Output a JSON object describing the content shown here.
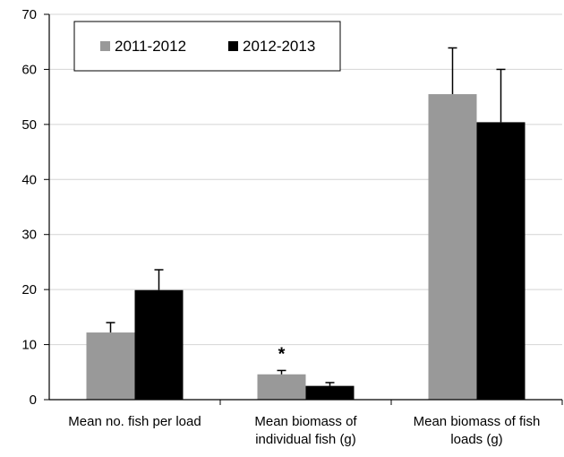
{
  "chart_data": {
    "type": "bar",
    "title": "",
    "xlabel": "",
    "ylabel": "",
    "ylim": [
      0,
      70
    ],
    "yticks": [
      "0",
      "10",
      "20",
      "30",
      "40",
      "50",
      "60",
      "70"
    ],
    "grid": true,
    "legend_position": "top-left",
    "categories": [
      [
        "Mean no. fish per load"
      ],
      [
        "Mean biomass of",
        "individual fish (g)"
      ],
      [
        "Mean biomass of fish",
        "loads (g)"
      ]
    ],
    "series": [
      {
        "name": "2011-2012",
        "color": "#999999",
        "values": [
          12.2,
          4.6,
          55.5
        ],
        "error": [
          1.8,
          0.7,
          8.4
        ]
      },
      {
        "name": "2012-2013",
        "color": "#000000",
        "values": [
          19.9,
          2.5,
          50.4
        ],
        "error": [
          3.7,
          0.6,
          9.6
        ]
      }
    ],
    "annotations": [
      {
        "text": "*",
        "category_index": 1,
        "series_index": 0
      }
    ]
  }
}
